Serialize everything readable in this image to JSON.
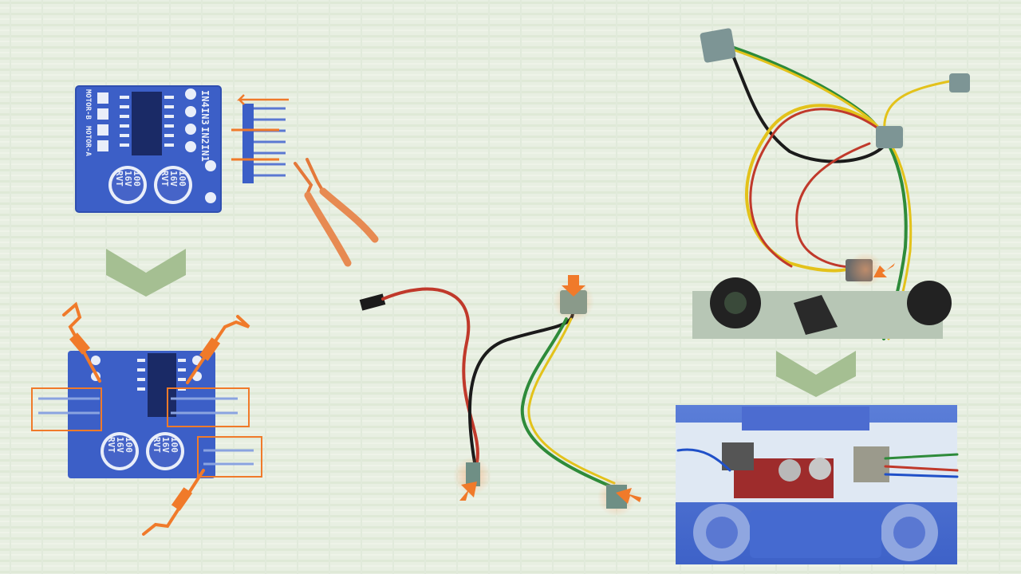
{
  "colors": {
    "background": "#e8efe2",
    "board_blue": "#3a5cc4",
    "board_blue_light": "#5b78d2",
    "accent_orange": "#f07a2a",
    "arrow_green": "#9fba8e",
    "wire_red": "#c0392b",
    "wire_black": "#1b1b1b",
    "wire_green": "#2e8b3a",
    "wire_yellow": "#e3c21a",
    "connector_gray": "#7d9595"
  },
  "boards": {
    "pin_labels": [
      "IN4",
      "IN3",
      "IN2",
      "IN1"
    ],
    "motor_labels": [
      "MOTOR-B",
      "MOTOR-A"
    ],
    "capacitor": {
      "line1": "100",
      "line2": "16V",
      "line3": "RVT"
    }
  },
  "icons": [
    "pliers-icon",
    "chevron-down-icon",
    "cut-mark-icon",
    "pointer-arrow-icon",
    "header-pin-icon",
    "connector-icon"
  ],
  "steps": [
    "remove-header-pins",
    "cut-pin-rows",
    "prepare-jumper-wires",
    "route-sensor-harness",
    "mount-driver-board"
  ]
}
